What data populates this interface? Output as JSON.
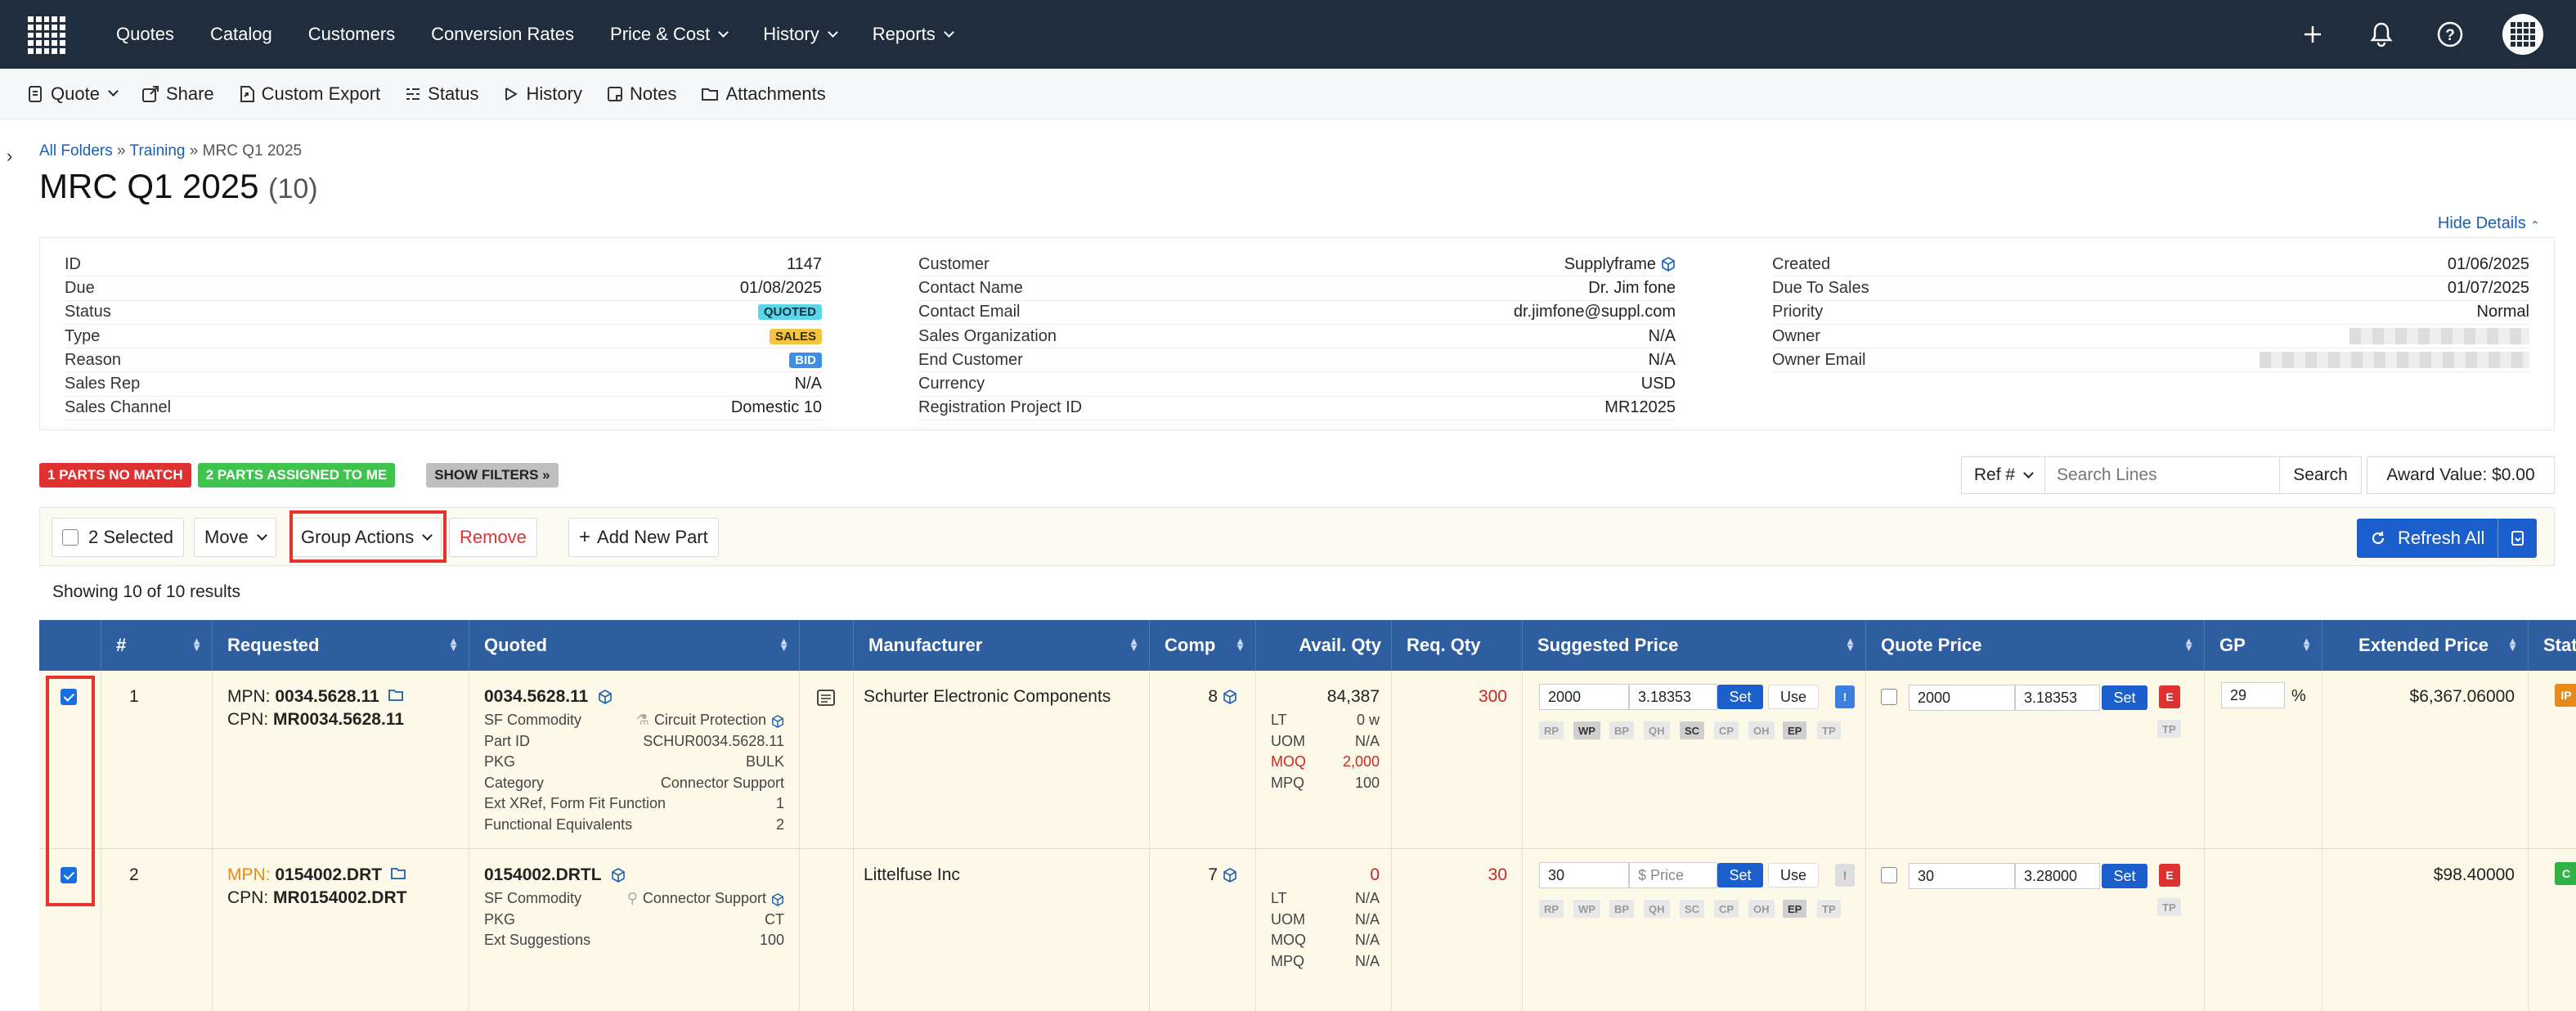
{
  "nav": {
    "items": [
      "Quotes",
      "Catalog",
      "Customers",
      "Conversion Rates",
      "Price & Cost",
      "History",
      "Reports"
    ]
  },
  "toolbar": {
    "quote": "Quote",
    "share": "Share",
    "custom_export": "Custom Export",
    "status": "Status",
    "history": "History",
    "notes": "Notes",
    "attachments": "Attachments"
  },
  "breadcrumb": {
    "all_folders": "All Folders",
    "training": "Training",
    "current": "MRC Q1 2025"
  },
  "page": {
    "title": "MRC Q1 2025",
    "count": "(10)",
    "hide_details": "Hide Details"
  },
  "details": {
    "col1": [
      {
        "k": "ID",
        "v": "1147"
      },
      {
        "k": "Due",
        "v": "01/08/2025"
      },
      {
        "k": "Status",
        "badge": "QUOTED"
      },
      {
        "k": "Type",
        "badge": "SALES"
      },
      {
        "k": "Reason",
        "badge": "BID"
      },
      {
        "k": "Sales Rep",
        "v": "N/A"
      },
      {
        "k": "Sales Channel",
        "v": "Domestic 10"
      }
    ],
    "col2": [
      {
        "k": "Customer",
        "v": "Supplyframe"
      },
      {
        "k": "Contact Name",
        "v": "Dr. Jim fone"
      },
      {
        "k": "Contact Email",
        "v": "dr.jimfone@suppl.com"
      },
      {
        "k": "Sales Organization",
        "v": "N/A"
      },
      {
        "k": "End Customer",
        "v": "N/A"
      },
      {
        "k": "Currency",
        "v": "USD"
      },
      {
        "k": "Registration Project ID",
        "v": "MR12025"
      }
    ],
    "col3": [
      {
        "k": "Created",
        "v": "01/06/2025"
      },
      {
        "k": "Due To Sales",
        "v": "01/07/2025"
      },
      {
        "k": "Priority",
        "v": "Normal"
      },
      {
        "k": "Owner",
        "v": ""
      },
      {
        "k": "Owner Email",
        "v": ""
      }
    ]
  },
  "filters": {
    "no_match": "1 PARTS NO MATCH",
    "assigned": "2 PARTS ASSIGNED TO ME",
    "show_filters": "SHOW FILTERS »"
  },
  "search": {
    "ref": "Ref #",
    "placeholder": "Search Lines",
    "button": "Search"
  },
  "award": "Award Value:  $0.00",
  "actions": {
    "selected": "2 Selected",
    "move": "Move",
    "group_actions": "Group Actions",
    "remove": "Remove",
    "add_new_part": "Add New Part",
    "refresh_all": "Refresh All"
  },
  "showing": "Showing 10 of 10 results",
  "table": {
    "headers": [
      "#",
      "Requested",
      "Quoted",
      "Manufacturer",
      "Comp",
      "Avail. Qty",
      "Req. Qty",
      "Suggested Price",
      "Quote Price",
      "GP",
      "Extended Price",
      "Status"
    ],
    "rows": [
      {
        "num": "1",
        "mpn_label": "MPN:",
        "mpn": "0034.5628.11",
        "cpn_label": "CPN:",
        "cpn": "MR0034.5628.11",
        "quoted": "0034.5628.11",
        "quoted_kv": [
          {
            "k": "SF Commodity",
            "v": "Circuit Protection"
          },
          {
            "k": "Part ID",
            "v": "SCHUR0034.5628.11"
          },
          {
            "k": "PKG",
            "v": "BULK"
          },
          {
            "k": "Category",
            "v": "Connector Support"
          },
          {
            "k": "Ext XRef, Form Fit Function",
            "v": "1"
          },
          {
            "k": "Functional Equivalents",
            "v": "2"
          }
        ],
        "manufacturer": "Schurter Electronic Components",
        "comp": "8",
        "avail": "84,387",
        "avail_kv": [
          {
            "k": "LT",
            "v": "0 w"
          },
          {
            "k": "UOM",
            "v": "N/A"
          },
          {
            "k": "MOQ",
            "v": "2,000"
          },
          {
            "k": "MPQ",
            "v": "100"
          }
        ],
        "req_qty": "300",
        "sug_qty": "2000",
        "sug_price": "3.18353",
        "q_qty": "2000",
        "q_price": "3.18353",
        "gp": "29",
        "gp_unit": "%",
        "extended": "$6,367.06000",
        "status": "IP",
        "status_color": "#e8891a"
      },
      {
        "num": "2",
        "mpn_label": "MPN:",
        "mpn": "0154002.DRT",
        "cpn_label": "CPN:",
        "cpn": "MR0154002.DRT",
        "quoted": "0154002.DRTL",
        "quoted_kv": [
          {
            "k": "SF Commodity",
            "v": "Connector Support"
          },
          {
            "k": "PKG",
            "v": "CT"
          },
          {
            "k": "Ext Suggestions",
            "v": "100"
          }
        ],
        "manufacturer": "Littelfuse Inc",
        "comp": "7",
        "avail": "0",
        "avail_kv": [
          {
            "k": "LT",
            "v": "N/A"
          },
          {
            "k": "UOM",
            "v": "N/A"
          },
          {
            "k": "MOQ",
            "v": "N/A"
          },
          {
            "k": "MPQ",
            "v": "N/A"
          }
        ],
        "req_qty": "30",
        "sug_qty": "30",
        "sug_price": "$ Price",
        "q_qty": "30",
        "q_price": "3.28000",
        "gp": "",
        "gp_unit": "",
        "extended": "$98.40000",
        "status": "C",
        "status_color": "#2fb344"
      }
    ],
    "tags1": [
      "RP",
      "WP",
      "BP",
      "QH",
      "SC",
      "CP",
      "OH",
      "EP",
      "TP"
    ],
    "btn_set": "Set",
    "btn_use": "Use",
    "btn_e": "E",
    "btn_tp": "TP",
    "btn_excl": "!"
  }
}
